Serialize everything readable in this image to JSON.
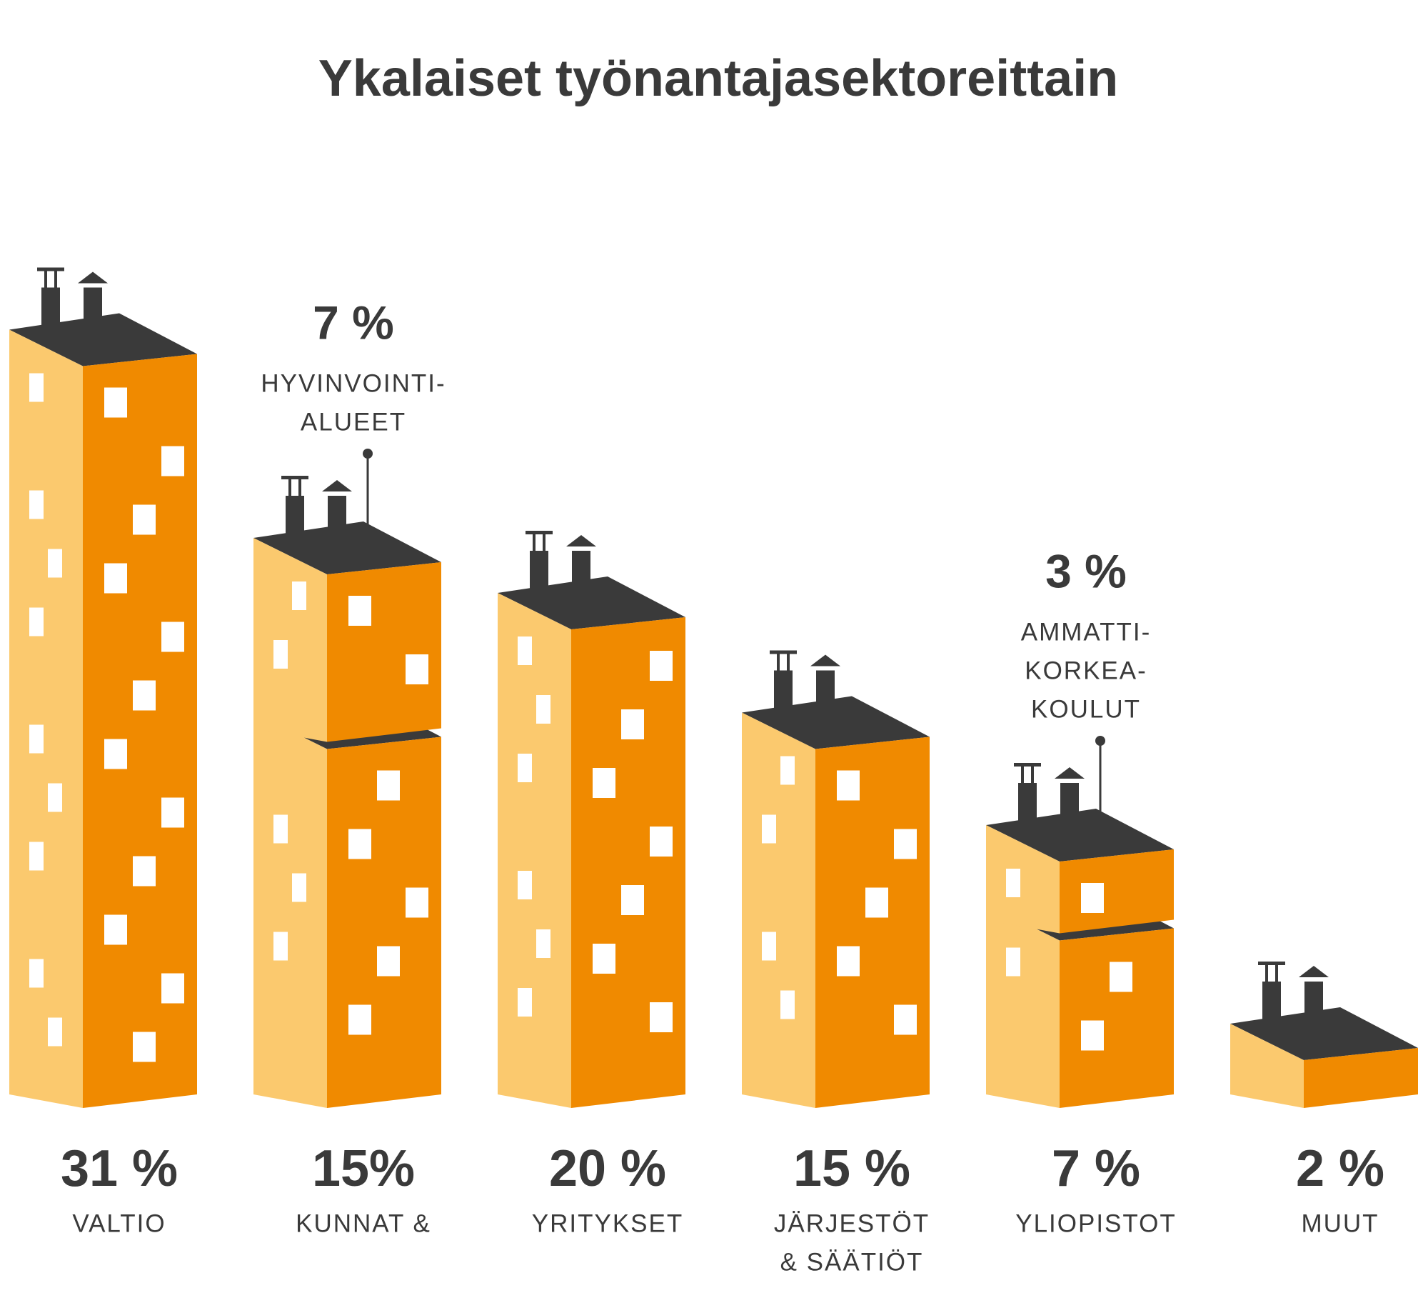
{
  "chart_data": {
    "type": "building",
    "title": "Ykalaiset työnantajasektoreittain",
    "categories": [
      [
        "VALTIO"
      ],
      [
        "KUNNAT &"
      ],
      [
        "YRITYKSET"
      ],
      [
        "JÄRJESTÖT",
        "& SÄÄTIÖT"
      ],
      [
        "YLIOPISTOT"
      ],
      [
        "MUUT"
      ]
    ],
    "values": [
      31,
      15,
      20,
      15,
      7,
      2
    ],
    "value_labels": [
      "31 %",
      "15%",
      "20 %",
      "15 %",
      "7 %",
      "2 %"
    ],
    "top_values": [
      null,
      7,
      null,
      null,
      3,
      null
    ],
    "top_value_labels": [
      null,
      "7 %",
      null,
      null,
      "3 %",
      null
    ],
    "top_labels": [
      null,
      [
        "HYVINVOINTI-",
        "ALUEET"
      ],
      null,
      null,
      [
        "AMMATTI-",
        "KORKEA-",
        "KOULUT"
      ],
      null
    ],
    "color": "#f08a00",
    "side_color": "#fbc96e",
    "roof_color": "#3a3a3a"
  }
}
